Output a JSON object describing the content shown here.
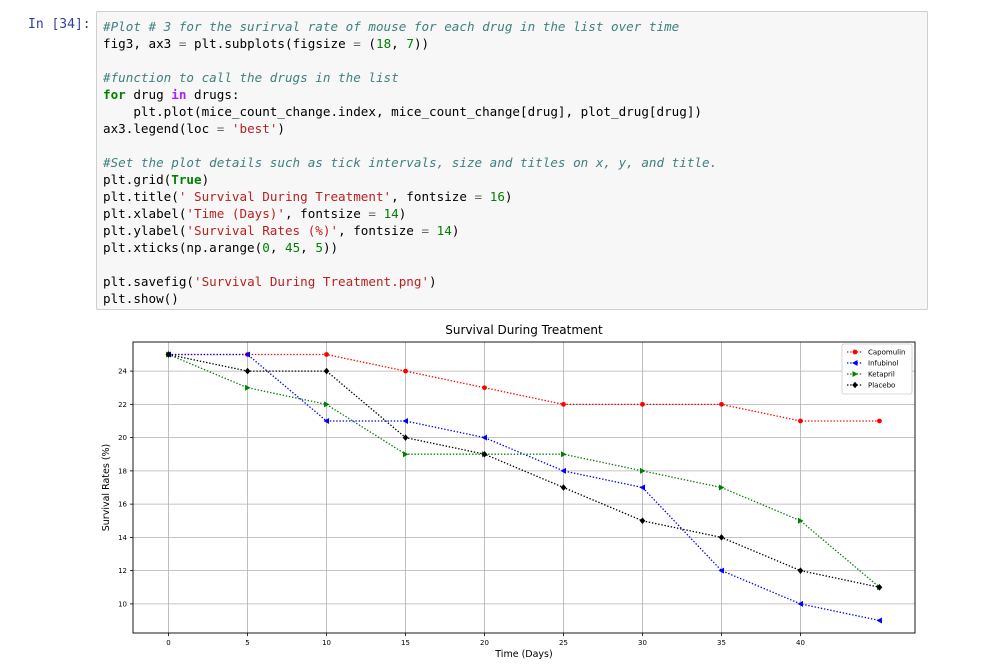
{
  "cell": {
    "prompt": "In [34]:",
    "code_lines": [
      "#Plot # 3 for the surirval rate of mouse for each drug in the list over time",
      "fig3, ax3 = plt.subplots(figsize = (18, 7))",
      "",
      "#function to call the drugs in the list",
      "for drug in drugs:",
      "    plt.plot(mice_count_change.index, mice_count_change[drug], plot_drug[drug])",
      "ax3.legend(loc = 'best')",
      "",
      "#Set the plot details such as tick intervals, size and titles on x, y, and title.",
      "plt.grid(True)",
      "plt.title(' Survival During Treatment', fontsize = 16)",
      "plt.xlabel('Time (Days)', fontsize = 14)",
      "plt.ylabel('Survival Rates (%)', fontsize = 14)",
      "plt.xticks(np.arange(0, 45, 5))",
      "",
      "plt.savefig('Survival During Treatment.png')",
      "plt.show()"
    ]
  },
  "chart_data": {
    "type": "line",
    "title": "Survival During Treatment",
    "xlabel": "Time (Days)",
    "ylabel": "Survival Rates (%)",
    "x": [
      0,
      5,
      10,
      15,
      20,
      25,
      30,
      35,
      40,
      45
    ],
    "xticks": [
      0,
      5,
      10,
      15,
      20,
      25,
      30,
      35,
      40
    ],
    "yticks": [
      10,
      12,
      14,
      16,
      18,
      20,
      22,
      24
    ],
    "xlim": [
      -2.25,
      47.25
    ],
    "ylim": [
      8.25,
      25.75
    ],
    "grid": true,
    "legend_loc": "top-right",
    "series": [
      {
        "name": "Capomulin",
        "color": "#ff0000",
        "marker": "circle",
        "values": [
          25,
          25,
          25,
          24,
          23,
          22,
          22,
          22,
          21,
          21
        ]
      },
      {
        "name": "Infubinol",
        "color": "#0000ff",
        "marker": "triangle-left",
        "values": [
          25,
          25,
          21,
          21,
          20,
          18,
          17,
          12,
          10,
          9
        ]
      },
      {
        "name": "Ketapril",
        "color": "#008000",
        "marker": "triangle-right",
        "values": [
          25,
          23,
          22,
          19,
          19,
          19,
          18,
          17,
          15,
          11
        ]
      },
      {
        "name": "Placebo",
        "color": "#000000",
        "marker": "diamond",
        "values": [
          25,
          24,
          24,
          20,
          19,
          17,
          15,
          14,
          12,
          11
        ]
      }
    ]
  }
}
